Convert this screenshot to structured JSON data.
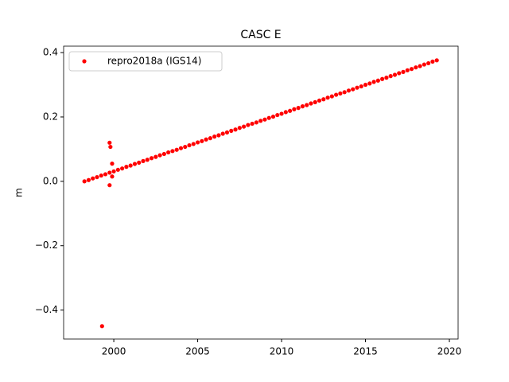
{
  "chart_data": {
    "type": "scatter",
    "title": "CASC E",
    "ylabel": "m",
    "x": [
      1998.25,
      1998.5,
      1998.75,
      1999,
      1999.25,
      1999.5,
      1999.75,
      2000,
      2000.25,
      2000.5,
      2000.75,
      2001,
      2001.25,
      2001.5,
      2001.75,
      2002,
      2002.25,
      2002.5,
      2002.75,
      2003,
      2003.25,
      2003.5,
      2003.75,
      2004,
      2004.25,
      2004.5,
      2004.75,
      2005,
      2005.25,
      2005.5,
      2005.75,
      2006,
      2006.25,
      2006.5,
      2006.75,
      2007,
      2007.25,
      2007.5,
      2007.75,
      2008,
      2008.25,
      2008.5,
      2008.75,
      2009,
      2009.25,
      2009.5,
      2009.75,
      2010,
      2010.25,
      2010.5,
      2010.75,
      2011,
      2011.25,
      2011.5,
      2011.75,
      2012,
      2012.25,
      2012.5,
      2012.75,
      2013,
      2013.25,
      2013.5,
      2013.75,
      2014,
      2014.25,
      2014.5,
      2014.75,
      2015,
      2015.25,
      2015.5,
      2015.75,
      2016,
      2016.25,
      2016.5,
      2016.75,
      2017,
      2017.25,
      2017.5,
      2017.75,
      2018,
      2018.25,
      2018.5,
      2018.75,
      2019,
      2019.25,
      1999.3,
      1999.75,
      1999.8,
      1999.9,
      1999.75,
      1999.9
    ],
    "series": [
      {
        "name": "repro2018a (IGS14)",
        "color": "#ff0000",
        "values": [
          0,
          0.004,
          0.009,
          0.013,
          0.018,
          0.022,
          0.027,
          0.031,
          0.036,
          0.04,
          0.045,
          0.049,
          0.054,
          0.058,
          0.063,
          0.067,
          0.072,
          0.076,
          0.081,
          0.085,
          0.09,
          0.094,
          0.098,
          0.103,
          0.107,
          0.112,
          0.116,
          0.121,
          0.125,
          0.13,
          0.134,
          0.139,
          0.143,
          0.148,
          0.152,
          0.157,
          0.161,
          0.166,
          0.17,
          0.175,
          0.179,
          0.183,
          0.188,
          0.192,
          0.197,
          0.201,
          0.206,
          0.21,
          0.215,
          0.219,
          0.224,
          0.228,
          0.233,
          0.237,
          0.242,
          0.246,
          0.251,
          0.255,
          0.26,
          0.264,
          0.269,
          0.273,
          0.277,
          0.282,
          0.286,
          0.291,
          0.295,
          0.3,
          0.304,
          0.309,
          0.313,
          0.318,
          0.322,
          0.327,
          0.331,
          0.336,
          0.34,
          0.345,
          0.349,
          0.354,
          0.358,
          0.363,
          0.367,
          0.372,
          0.376,
          -0.45,
          0.12,
          0.107,
          0.055,
          -0.012,
          0.015
        ]
      }
    ],
    "xlim": [
      1997.01,
      2020.52
    ],
    "ylim": [
      -0.49,
      0.42
    ],
    "xticks": [
      2000,
      2005,
      2010,
      2015,
      2020
    ],
    "yticks": [
      {
        "value": -0.4,
        "label": "−0.4"
      },
      {
        "value": -0.2,
        "label": "−0.2"
      },
      {
        "value": 0,
        "label": "0.0"
      },
      0.2,
      0.4
    ],
    "legend": "upper left"
  }
}
